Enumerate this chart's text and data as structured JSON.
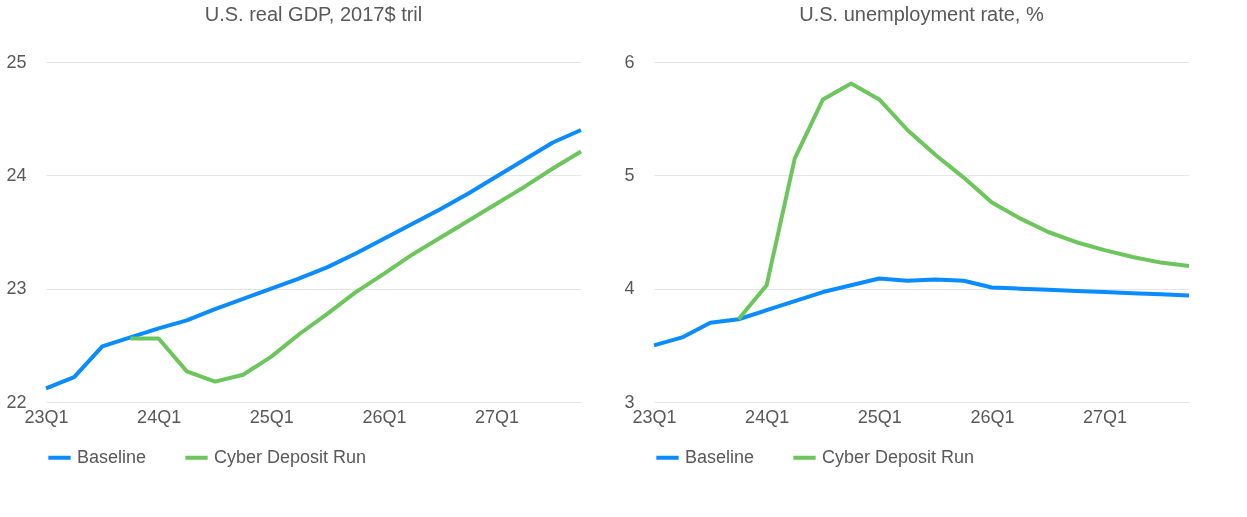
{
  "chart_data": [
    {
      "type": "line",
      "title": "U.S. real GDP, 2017$ tril",
      "categories": [
        "23Q1",
        null,
        null,
        null,
        "24Q1",
        null,
        null,
        null,
        "25Q1",
        null,
        null,
        null,
        "26Q1",
        null,
        null,
        null,
        "27Q1",
        null,
        null,
        null
      ],
      "ylim": [
        22,
        25
      ],
      "yticks": [
        22,
        23,
        24,
        25
      ],
      "grid": "y",
      "legend": "bottom",
      "series": [
        {
          "name": "Baseline",
          "color": "#0a8cff",
          "values": [
            22.12,
            22.22,
            22.49,
            22.57,
            22.65,
            22.72,
            22.82,
            22.91,
            23.0,
            23.09,
            23.19,
            23.31,
            23.44,
            23.57,
            23.7,
            23.84,
            23.99,
            24.14,
            24.29,
            24.4
          ]
        },
        {
          "name": "Cyber Deposit Run",
          "color": "#6cc65c",
          "values": [
            null,
            null,
            null,
            22.56,
            22.56,
            22.27,
            22.18,
            22.24,
            22.4,
            22.6,
            22.78,
            22.97,
            23.13,
            23.3,
            23.45,
            23.6,
            23.75,
            23.9,
            24.06,
            24.21
          ]
        }
      ]
    },
    {
      "type": "line",
      "title": "U.S. unemployment rate, %",
      "categories": [
        "23Q1",
        null,
        null,
        null,
        "24Q1",
        null,
        null,
        null,
        "25Q1",
        null,
        null,
        null,
        "26Q1",
        null,
        null,
        null,
        "27Q1",
        null,
        null,
        null
      ],
      "ylim": [
        3,
        6
      ],
      "yticks": [
        3,
        4,
        5,
        6
      ],
      "grid": "y",
      "legend": "bottom",
      "series": [
        {
          "name": "Baseline",
          "color": "#0a8cff",
          "values": [
            3.5,
            3.57,
            3.7,
            3.73,
            3.81,
            3.89,
            3.97,
            4.03,
            4.09,
            4.07,
            4.08,
            4.07,
            4.01,
            4.0,
            3.99,
            3.98,
            3.97,
            3.96,
            3.95,
            3.94
          ]
        },
        {
          "name": "Cyber Deposit Run",
          "color": "#6cc65c",
          "values": [
            null,
            null,
            null,
            3.73,
            4.03,
            5.15,
            5.67,
            5.81,
            5.67,
            5.4,
            5.18,
            4.98,
            4.76,
            4.62,
            4.5,
            4.41,
            4.34,
            4.28,
            4.23,
            4.2
          ]
        }
      ]
    }
  ]
}
